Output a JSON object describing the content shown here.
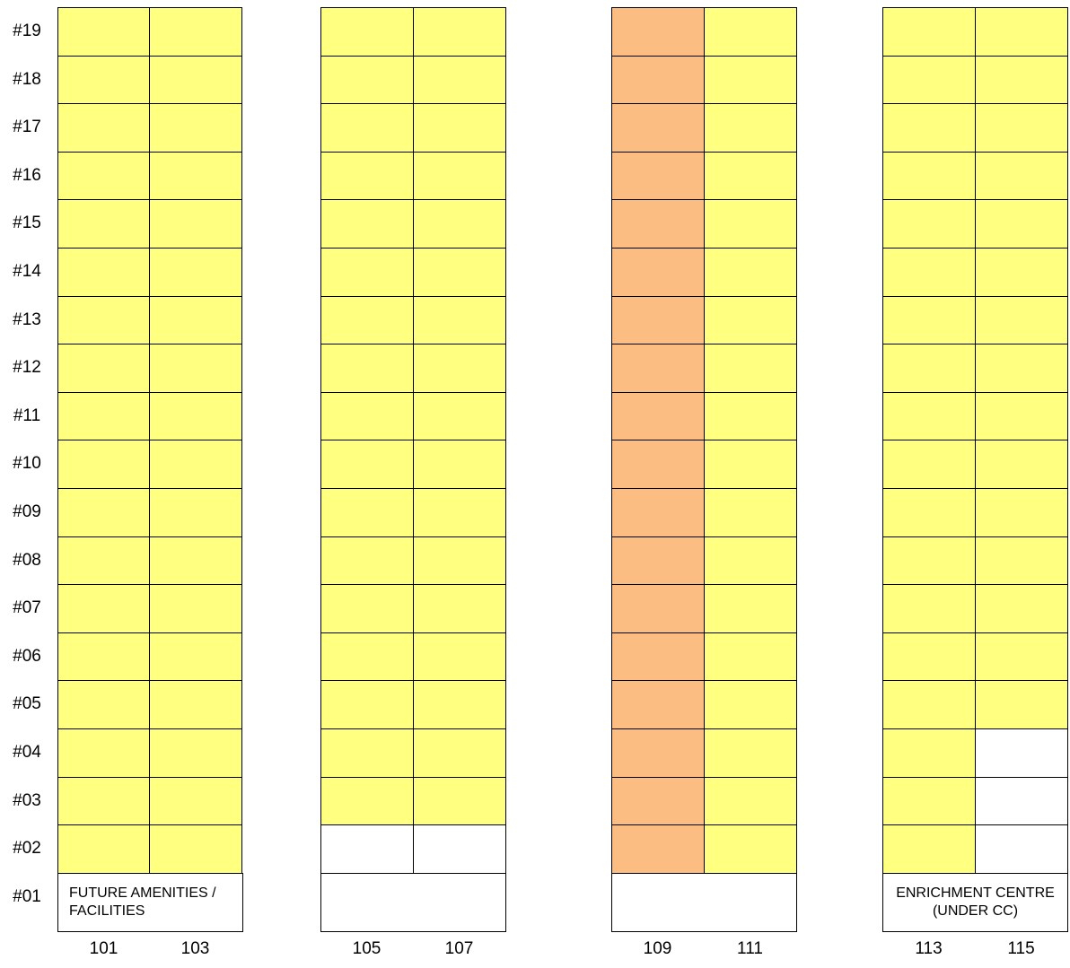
{
  "colors": {
    "sold": "#ffff80",
    "highlight": "#fbbd82",
    "available": "#ffffff",
    "grid_line": "#000000"
  },
  "floors": [
    "#19",
    "#18",
    "#17",
    "#16",
    "#15",
    "#14",
    "#13",
    "#12",
    "#11",
    "#10",
    "#09",
    "#08",
    "#07",
    "#06",
    "#05",
    "#04",
    "#03",
    "#02",
    "#01"
  ],
  "units": [
    "101",
    "103",
    "105",
    "107",
    "109",
    "111",
    "113",
    "115"
  ],
  "notes": {
    "block_101_103_first_floor": "FUTURE AMENITIES / FACILITIES",
    "block_113_115_first_floor": "ENRICHMENT CENTRE (UNDER CC)"
  },
  "status_grid": {
    "legend": {
      "Y": "sold",
      "O": "highlight",
      "W": "available"
    },
    "rows_top_to_bottom_floor_19_to_02": [
      "YYYYOYYY",
      "YYYYOYYY",
      "YYYYOYYY",
      "YYYYOYYY",
      "YYYYOYYY",
      "YYYYOYYY",
      "YYYYOYYY",
      "YYYYOYYY",
      "YYYYOYYY",
      "YYYYOYYY",
      "YYYYOYYY",
      "YYYYOYYY",
      "YYYYOYYY",
      "YYYYOYYY",
      "YYYYOYYY",
      "YYYYOYYW",
      "YYYYOYYW",
      "YYWWOYYW"
    ]
  }
}
